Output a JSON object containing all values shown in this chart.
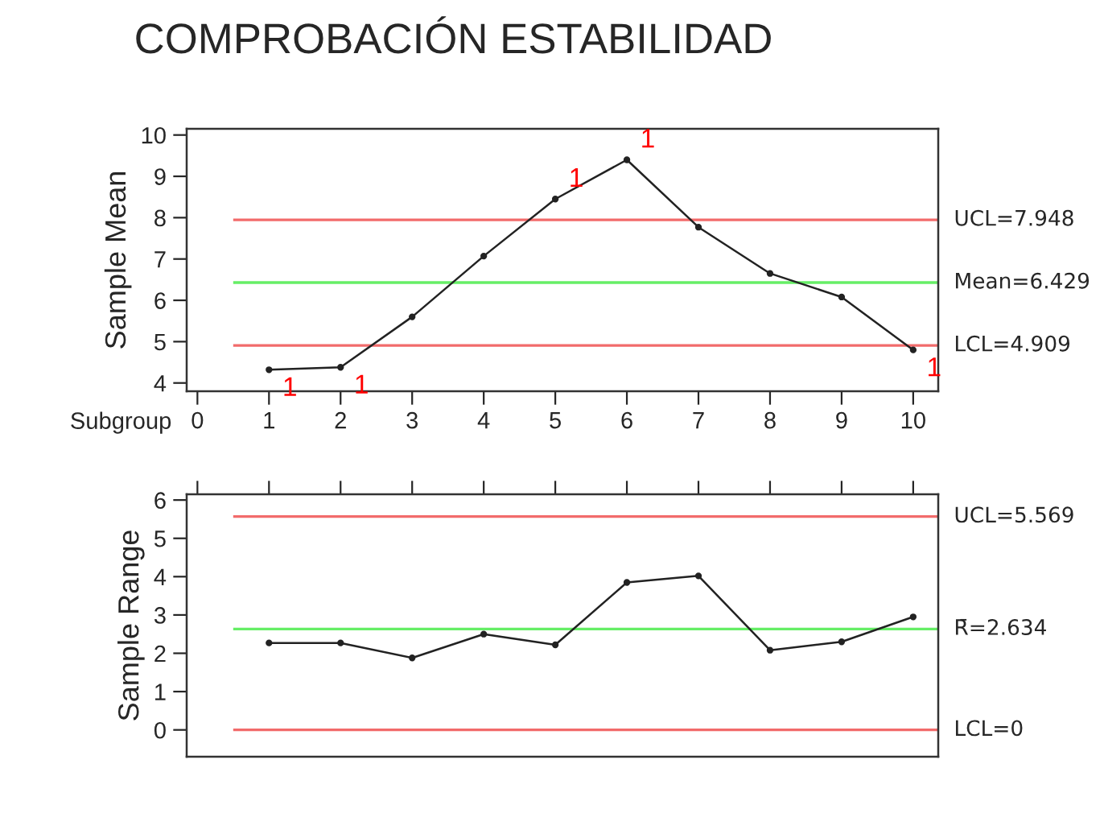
{
  "chart_data": [
    {
      "type": "line",
      "title": "COMPROBACIÓN ESTABILIDAD",
      "ylabel": "Sample Mean",
      "xlabel": "Subgroup",
      "x": [
        1,
        2,
        3,
        4,
        5,
        6,
        7,
        8,
        9,
        10
      ],
      "series": [
        {
          "color": "#222222",
          "values": [
            4.32,
            4.38,
            5.6,
            7.07,
            8.45,
            9.4,
            7.77,
            6.65,
            6.08,
            4.8
          ]
        }
      ],
      "marker": "circle",
      "line_style": "solid",
      "grid": false,
      "legend": false,
      "xlim": [
        -0.15,
        10.35
      ],
      "xticks": [
        0,
        1,
        2,
        3,
        4,
        5,
        6,
        7,
        8,
        9,
        10
      ],
      "ylim": [
        3.8,
        10.15
      ],
      "yticks": [
        4,
        5,
        6,
        7,
        8,
        9,
        10
      ],
      "ref_lines": [
        {
          "axis": "y",
          "value": 7.948,
          "label": "UCL=7.948",
          "color": "#f26b6b"
        },
        {
          "axis": "y",
          "value": 6.429,
          "label": "Mean=6.429",
          "color": "#66ee66"
        },
        {
          "axis": "y",
          "value": 4.909,
          "label": "LCL=4.909",
          "color": "#f26b6b"
        }
      ],
      "annotations": [
        {
          "text": "1",
          "x": 1,
          "y": 4.32
        },
        {
          "text": "1",
          "x": 2,
          "y": 4.38
        },
        {
          "text": "1",
          "x": 5,
          "y": 8.45
        },
        {
          "text": "1",
          "x": 6,
          "y": 9.4
        },
        {
          "text": "1",
          "x": 10,
          "y": 4.8
        }
      ]
    },
    {
      "type": "line",
      "ylabel": "Sample Range",
      "x": [
        1,
        2,
        3,
        4,
        5,
        6,
        7,
        8,
        9,
        10
      ],
      "series": [
        {
          "color": "#222222",
          "values": [
            2.27,
            2.27,
            1.88,
            2.5,
            2.22,
            3.85,
            4.02,
            2.08,
            2.3,
            2.95
          ]
        }
      ],
      "marker": "circle",
      "line_style": "solid",
      "grid": false,
      "legend": false,
      "tick_labels": "y",
      "xlim": [
        -0.15,
        10.35
      ],
      "xticks": [
        0,
        1,
        2,
        3,
        4,
        5,
        6,
        7,
        8,
        9,
        10
      ],
      "ylim": [
        -0.7,
        6.15
      ],
      "yticks": [
        0,
        1,
        2,
        3,
        4,
        5,
        6
      ],
      "ref_lines": [
        {
          "axis": "y",
          "value": 5.569,
          "label": "UCL=5.569",
          "color": "#f26b6b"
        },
        {
          "axis": "y",
          "value": 2.634,
          "label": "R̄=2.634",
          "color": "#66ee66"
        },
        {
          "axis": "y",
          "value": 0,
          "label": "LCL=0",
          "color": "#f26b6b"
        }
      ]
    }
  ]
}
